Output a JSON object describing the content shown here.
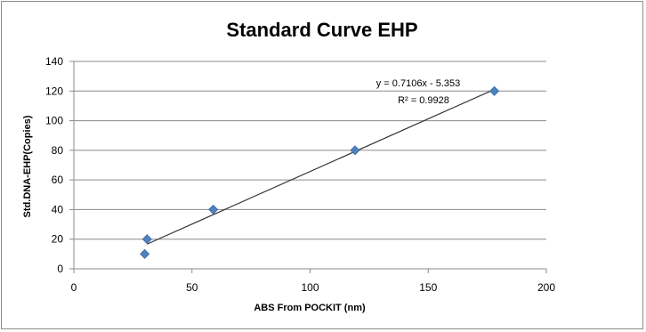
{
  "chart_data": {
    "type": "scatter",
    "title": "Standard Curve EHP",
    "xlabel": "ABS From POCKIT  (nm)",
    "ylabel": "Std.DNA-EHP(Copies)",
    "xlim": [
      0,
      200
    ],
    "ylim": [
      0,
      140
    ],
    "xticks": [
      0,
      50,
      100,
      150,
      200
    ],
    "yticks": [
      0,
      20,
      40,
      60,
      80,
      100,
      120,
      140
    ],
    "grid": "horizontal",
    "marker": "diamond",
    "marker_color": "#4F81BD",
    "points": [
      {
        "x": 30,
        "y": 10
      },
      {
        "x": 31,
        "y": 20
      },
      {
        "x": 59,
        "y": 40
      },
      {
        "x": 119,
        "y": 80
      },
      {
        "x": 178,
        "y": 120
      }
    ],
    "trendline": {
      "type": "linear",
      "slope": 0.7106,
      "intercept": -5.353,
      "x_range": [
        31,
        178
      ],
      "equation_text": "y = 0.7106x - 5.353",
      "r2_text": "R² = 0.9928"
    }
  }
}
